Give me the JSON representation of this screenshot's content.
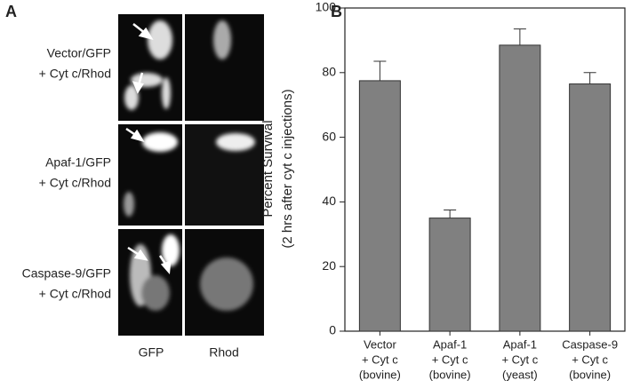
{
  "panel_a": {
    "letter": "A",
    "rows": [
      [
        "Vector/GFP",
        "+ Cyt c/Rhod"
      ],
      [
        "Apaf-1/GFP",
        "+ Cyt c/Rhod"
      ],
      [
        "Caspase-9/GFP",
        "+ Cyt c/Rhod"
      ]
    ],
    "columns": [
      "GFP",
      "Rhod"
    ]
  },
  "chart_data": {
    "type": "bar",
    "letter": "B",
    "ylabel": [
      "Percent Survival",
      "(2 hrs after cyt c injections)"
    ],
    "categories": [
      [
        "Vector",
        "+ Cyt c",
        "(bovine)"
      ],
      [
        "Apaf-1",
        "+ Cyt c",
        "(bovine)"
      ],
      [
        "Apaf-1",
        "+ Cyt c",
        "(yeast)"
      ],
      [
        "Caspase-9",
        "+ Cyt c",
        "(bovine)"
      ]
    ],
    "values": [
      77.5,
      35,
      88.5,
      76.5
    ],
    "errors": [
      6,
      2.5,
      5,
      3.5
    ],
    "color": "#808080",
    "ylim": [
      0,
      100
    ],
    "yticks": [
      0,
      20,
      40,
      60,
      80,
      100
    ],
    "grid": false
  }
}
